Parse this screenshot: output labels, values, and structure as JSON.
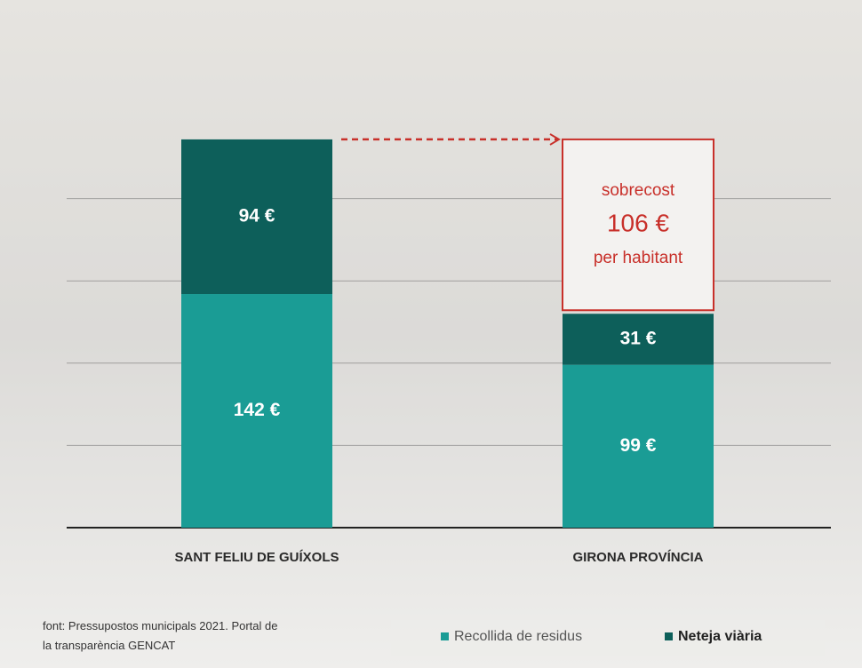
{
  "chart_data": {
    "type": "stacked_bar",
    "categories": [
      "SANT FELIU DE GUÍXOLS",
      "GIRONA PROVÍNCIA"
    ],
    "series": [
      {
        "name": "Recollida de residus",
        "color": "#1a9c95",
        "values": [
          142,
          99
        ],
        "value_labels": [
          "142 €",
          "99 €"
        ]
      },
      {
        "name": "Neteja viària",
        "color": "#0d5f5a",
        "values": [
          94,
          31
        ],
        "value_labels": [
          "94 €",
          "31 €"
        ]
      }
    ],
    "ylim": [
      0,
      250
    ],
    "yticks": [
      0,
      50,
      100,
      150,
      200
    ],
    "grid": true,
    "annotation": {
      "top": "sobrecost",
      "value": 106,
      "value_label": "106 €",
      "bottom": "per habitant",
      "color": "#c8302a"
    },
    "source": "font: Pressupostos municipals 2021. Portal de la transparència GENCAT"
  }
}
